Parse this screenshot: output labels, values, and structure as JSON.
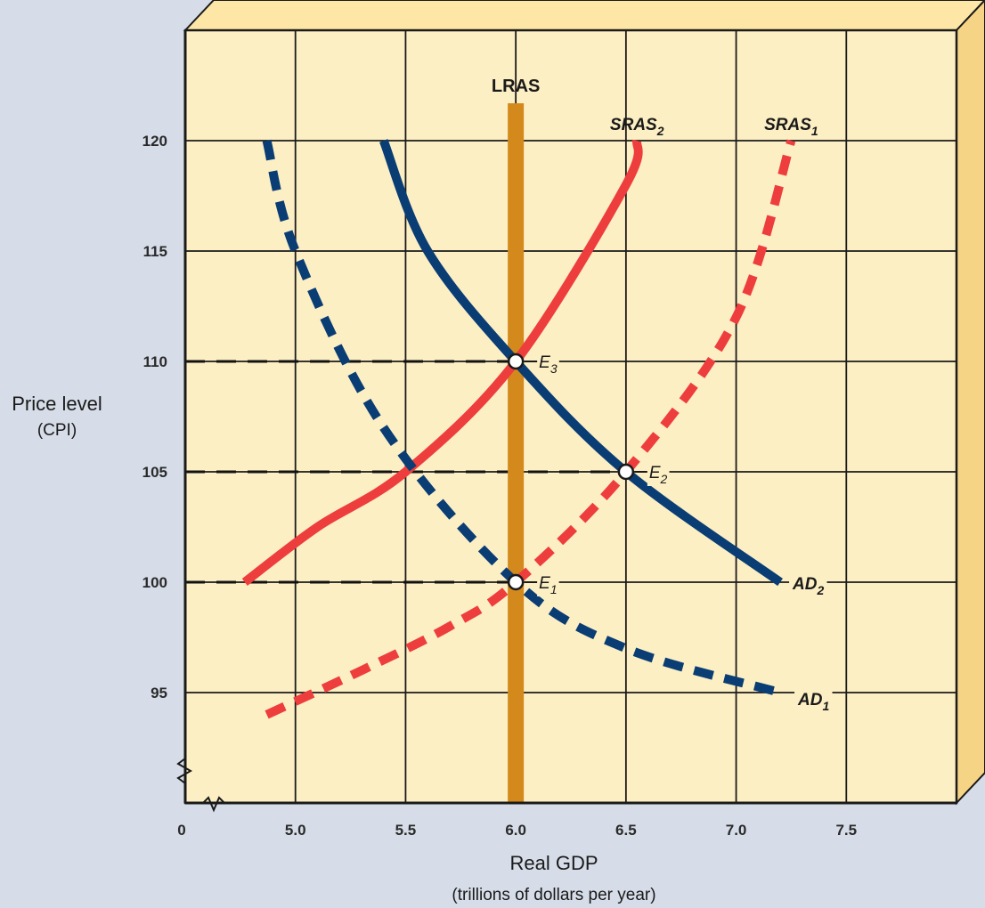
{
  "chart_data": {
    "type": "line",
    "xlabel": "Real GDP",
    "xlabel_sub": "(trillions of dollars per year)",
    "ylabel": "Price level",
    "ylabel_sub": "(CPI)",
    "x_ticks": [
      "0",
      "5.0",
      "5.5",
      "6.0",
      "6.5",
      "7.0",
      "7.5"
    ],
    "y_ticks": [
      "95",
      "100",
      "105",
      "110",
      "115",
      "120"
    ],
    "xlim": [
      4.5,
      8.0
    ],
    "ylim": [
      90,
      125
    ],
    "axis_break": true,
    "grid": true,
    "lras": {
      "label": "LRAS",
      "x": 6.0,
      "color": "#d4891c"
    },
    "series": [
      {
        "key": "SRAS1",
        "base": "SRAS",
        "sub": "1",
        "style": "dashed",
        "color": "#ee3d3d",
        "x": [
          4.87,
          5.3,
          5.7,
          6.0,
          6.5,
          7.0,
          7.25
        ],
        "y": [
          94,
          96,
          98,
          100,
          105,
          112,
          120
        ]
      },
      {
        "key": "SRAS2",
        "base": "SRAS",
        "sub": "2",
        "style": "solid",
        "color": "#ee3d3d",
        "x": [
          4.77,
          5.1,
          5.5,
          6.0,
          6.5,
          6.55
        ],
        "y": [
          100,
          102.5,
          105,
          110,
          118,
          120
        ]
      },
      {
        "key": "AD1",
        "base": "AD",
        "sub": "1",
        "style": "dashed",
        "color": "#0a3d74",
        "x": [
          4.87,
          5.0,
          5.4,
          6.0,
          6.5,
          7.2
        ],
        "y": [
          120,
          115,
          107,
          100,
          97,
          95
        ]
      },
      {
        "key": "AD2",
        "base": "AD",
        "sub": "2",
        "style": "solid",
        "color": "#0a3d74",
        "x": [
          5.4,
          5.6,
          6.0,
          6.5,
          7.2
        ],
        "y": [
          120,
          115,
          110,
          105,
          100
        ]
      }
    ],
    "points": [
      {
        "base": "E",
        "sub": "1",
        "x": 6.0,
        "y": 100
      },
      {
        "base": "E",
        "sub": "2",
        "x": 6.5,
        "y": 105
      },
      {
        "base": "E",
        "sub": "3",
        "x": 6.0,
        "y": 110
      }
    ],
    "guides": [
      {
        "y": 110,
        "to_x": 6.0
      },
      {
        "y": 105,
        "to_x": 6.5
      },
      {
        "y": 100,
        "to_x": 6.0
      }
    ]
  }
}
